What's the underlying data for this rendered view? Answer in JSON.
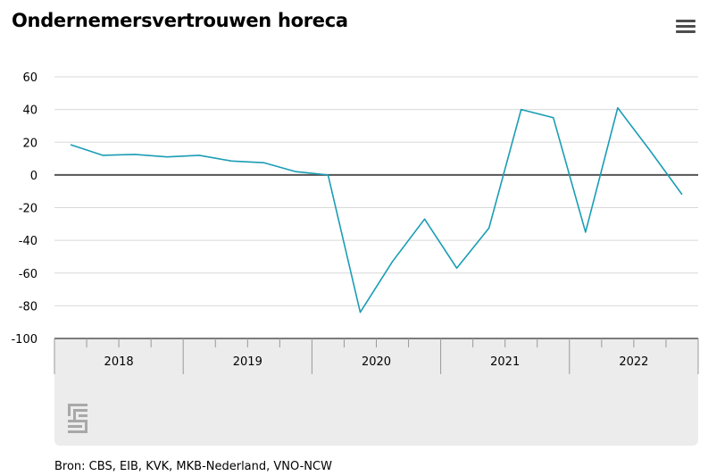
{
  "header": {
    "title": "Ondernemersvertrouwen horeca",
    "menu_icon": "hamburger-menu-icon"
  },
  "footer": {
    "source": "Bron: CBS, EIB, KVK, MKB-Nederland, VNO-NCW",
    "logo_icon": "cbs-logo-icon"
  },
  "colors": {
    "line": "#1a9db5",
    "zero_line": "#555555",
    "grid": "#d9d9d9",
    "axis_band": "#ececec"
  },
  "chart_data": {
    "type": "line",
    "title": "Ondernemersvertrouwen horeca",
    "xlabel": "",
    "ylabel": "",
    "ylim": [
      -100,
      60
    ],
    "yticks": [
      60,
      40,
      20,
      0,
      -20,
      -40,
      -60,
      -80,
      -100
    ],
    "year_labels": [
      "2018",
      "2019",
      "2020",
      "2021",
      "2022"
    ],
    "x": [
      "2018 Q1",
      "2018 Q2",
      "2018 Q3",
      "2018 Q4",
      "2019 Q1",
      "2019 Q2",
      "2019 Q3",
      "2019 Q4",
      "2020 Q1",
      "2020 Q2",
      "2020 Q3",
      "2020 Q4",
      "2021 Q1",
      "2021 Q2",
      "2021 Q3",
      "2021 Q4",
      "2022 Q1",
      "2022 Q2",
      "2022 Q3",
      "2022 Q4"
    ],
    "series": [
      {
        "values": [
          18.5,
          12,
          12.5,
          11,
          12,
          8.5,
          7.5,
          2,
          0,
          -84,
          -53,
          -27,
          -57,
          -32.5,
          40,
          35,
          -35,
          41,
          15,
          -12
        ]
      }
    ],
    "grid": true,
    "legend": "none"
  }
}
